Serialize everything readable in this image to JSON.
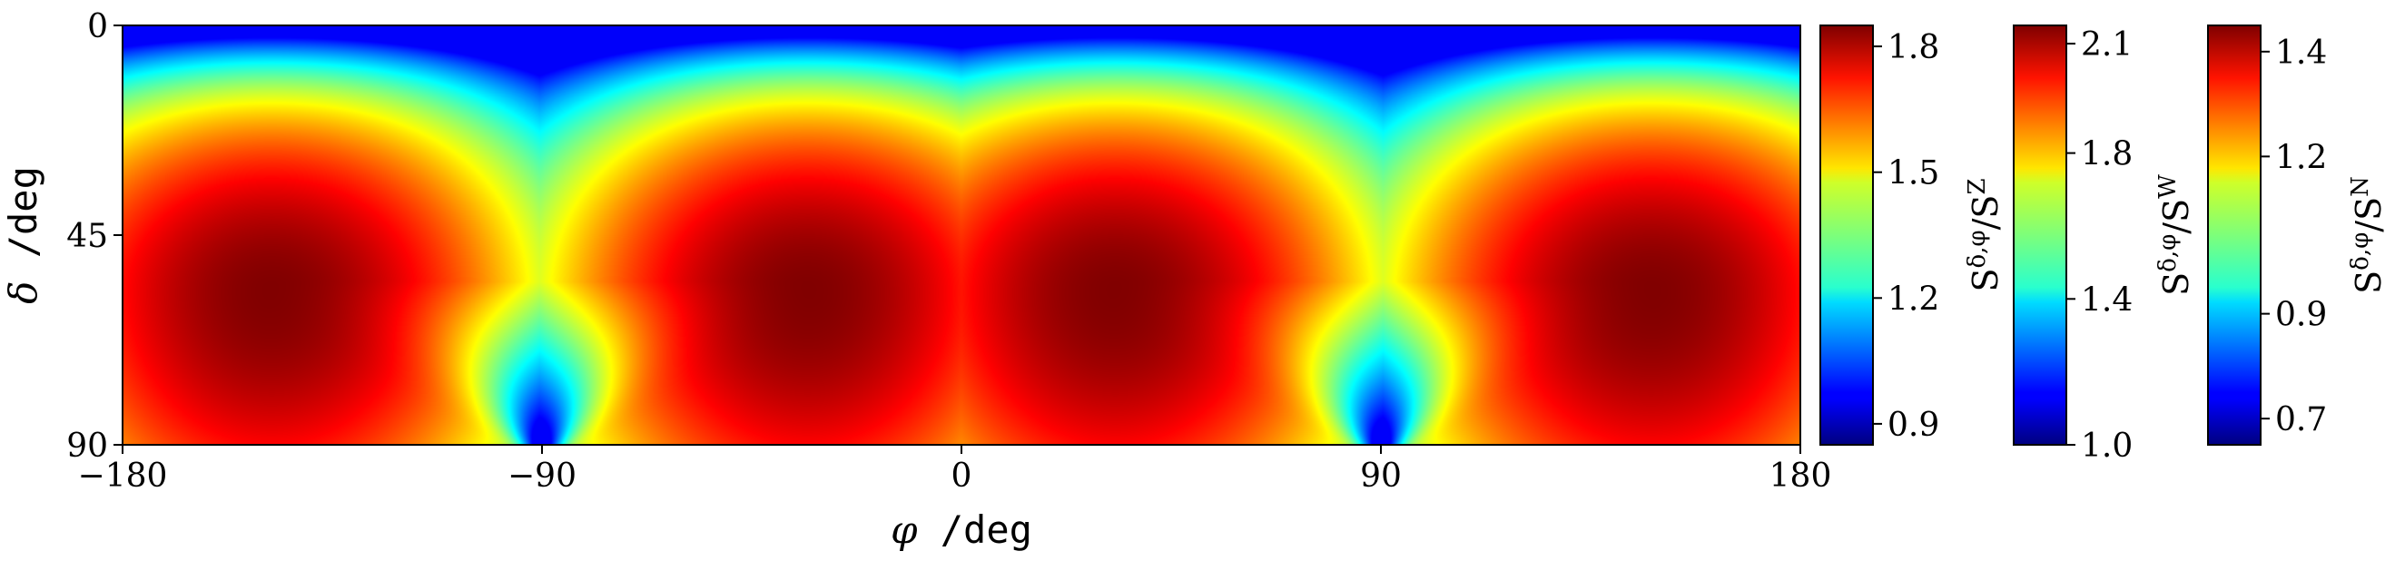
{
  "chart_data": [
    {
      "type": "heatmap",
      "title": "",
      "xlabel": "φ /deg",
      "ylabel": "δ /deg",
      "xlim": [
        -180,
        180
      ],
      "ylim": [
        90,
        0
      ],
      "xticks": [
        -180,
        -90,
        0,
        90,
        180
      ],
      "yticks": [
        0,
        45,
        90
      ],
      "colormap": "jet",
      "grid": false,
      "field_description": "four elliptical maxima centered near (φ, δ) ≈ (±150, 57) and (±35, 57); minima along δ = 0 and near δ = 90 at φ = ±90",
      "maxima": [
        {
          "phi": -148,
          "delta": 57
        },
        {
          "phi": -33,
          "delta": 57
        },
        {
          "phi": 33,
          "delta": 57
        },
        {
          "phi": 148,
          "delta": 57
        }
      ]
    },
    {
      "type": "colorbar",
      "label": "S^{δ,φ}/S^{Z}",
      "range": [
        0.85,
        1.85
      ],
      "ticks": [
        0.9,
        1.2,
        1.5,
        1.8
      ]
    },
    {
      "type": "colorbar",
      "label": "S^{δ,φ}/S^{W}",
      "range": [
        1.0,
        2.15
      ],
      "ticks": [
        1.0,
        1.4,
        1.8,
        2.1
      ]
    },
    {
      "type": "colorbar",
      "label": "S^{δ,φ}/S^{N}",
      "range": [
        0.65,
        1.45
      ],
      "ticks": [
        0.7,
        0.9,
        1.2,
        1.4
      ]
    }
  ],
  "text": {
    "xlabel_sym": "φ",
    "xlabel_unit": " /deg",
    "ylabel_sym": "δ",
    "ylabel_unit": " /deg",
    "cb_numer": "S",
    "cb_sup": "δ,φ",
    "cb_slash": "/S",
    "cb1_sup": "Z",
    "cb2_sup": "W",
    "cb3_sup": "N"
  }
}
